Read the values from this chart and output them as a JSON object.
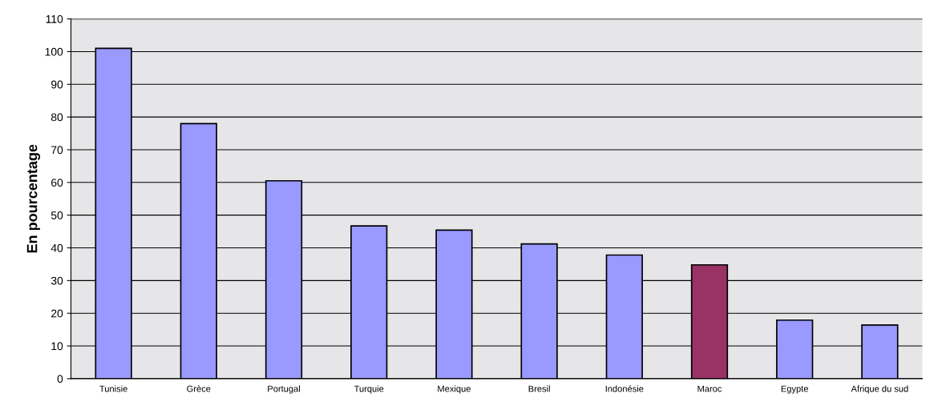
{
  "chart_data": {
    "type": "bar",
    "ylabel": "En pourcentage",
    "categories": [
      "Tunisie",
      "Grèce",
      "Portugal",
      "Turquie",
      "Mexique",
      "Bresil",
      "Indonésie",
      "Maroc",
      "Egypte",
      "Afrique du sud"
    ],
    "values": [
      101,
      78,
      60.5,
      46.7,
      45.4,
      41.2,
      37.8,
      34.8,
      17.9,
      16.4
    ],
    "colors": [
      "#9999ff",
      "#9999ff",
      "#9999ff",
      "#9999ff",
      "#9999ff",
      "#9999ff",
      "#9999ff",
      "#993366",
      "#9999ff",
      "#9999ff"
    ],
    "ylim": [
      0,
      110
    ],
    "yticks": [
      0,
      10,
      20,
      30,
      40,
      50,
      60,
      70,
      80,
      90,
      100,
      110
    ],
    "grid": "y"
  }
}
